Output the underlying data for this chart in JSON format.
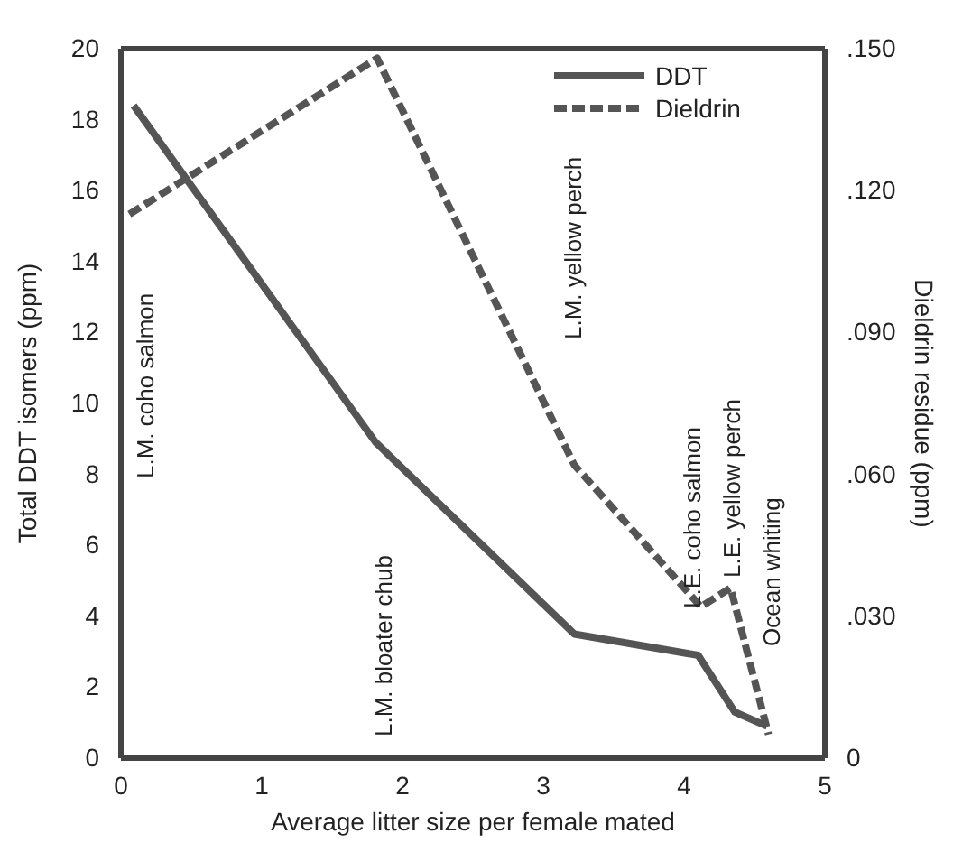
{
  "chart_data": {
    "type": "line",
    "xlabel": "Average litter size per female mated",
    "ylabel": "Total DDT isomers (ppm)",
    "y2label": "Dieldrin residue (ppm)",
    "xlim": [
      0,
      5
    ],
    "xticks": [
      0,
      1,
      2,
      3,
      4,
      5
    ],
    "ylim": [
      0,
      20
    ],
    "yticks": [
      0,
      2,
      4,
      6,
      8,
      10,
      12,
      14,
      16,
      18,
      20
    ],
    "y2lim": [
      0,
      0.15
    ],
    "y2ticks": [
      {
        "value": 0,
        "label": "0"
      },
      {
        "value": 0.03,
        "label": ".030"
      },
      {
        "value": 0.06,
        "label": ".060"
      },
      {
        "value": 0.09,
        "label": ".090"
      },
      {
        "value": 0.12,
        "label": ".120"
      },
      {
        "value": 0.15,
        "label": ".150"
      }
    ],
    "legend": "top right",
    "grid": false,
    "marker": "none",
    "series": [
      {
        "name": "DDT",
        "color": "#555555",
        "line_style": "solid",
        "x": [
          0.09,
          1.81,
          3.22,
          4.1,
          4.36,
          4.59
        ],
        "values": [
          18.4,
          8.9,
          3.5,
          2.9,
          1.3,
          0.9
        ]
      },
      {
        "name": "Dieldrin",
        "color": "#555555",
        "line_style": "dashed",
        "axis": "y2",
        "x": [
          0.06,
          1.82,
          3.22,
          4.12,
          4.33,
          4.6
        ],
        "values": [
          0.115,
          0.148,
          0.062,
          0.032,
          0.036,
          0.005
        ]
      }
    ],
    "annotations": [
      "L.M. coho salmon",
      "L.M. bloater chub",
      "L.M. yellow perch",
      "L.E. coho salmon",
      "L.E. yellow perch",
      "Ocean whiting"
    ]
  }
}
